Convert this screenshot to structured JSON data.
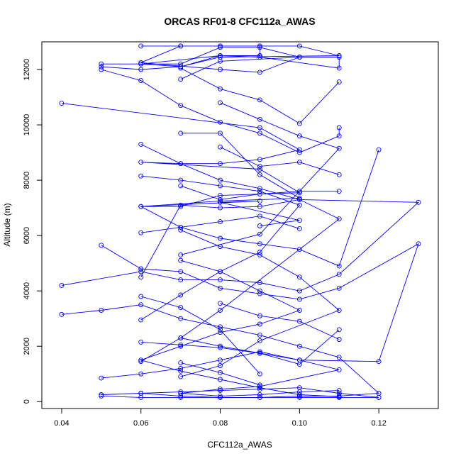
{
  "chart_data": {
    "type": "line",
    "title": "ORCAS RF01-8 CFC112a_AWAS",
    "xlabel": "CFC112a_AWAS",
    "ylabel": "Altitude (m)",
    "xlim": [
      0.035,
      0.135
    ],
    "ylim": [
      -250,
      13000
    ],
    "xticks": [
      0.04,
      0.06,
      0.08,
      0.1,
      0.12
    ],
    "xtick_labels": [
      "0.04",
      "0.06",
      "0.08",
      "0.10",
      "0.12"
    ],
    "yticks": [
      0,
      2000,
      4000,
      6000,
      8000,
      10000,
      12000
    ],
    "ytick_labels": [
      "0",
      "2000",
      "4000",
      "6000",
      "8000",
      "10000",
      "12000"
    ],
    "grid": false,
    "legend": "none",
    "line_color": "#0000ff",
    "series": [
      {
        "x": [
          0.06,
          0.07,
          0.08,
          0.09,
          0.1,
          0.11,
          0.08,
          0.07,
          0.06,
          0.05,
          0.05,
          0.06,
          0.07,
          0.08,
          0.09,
          0.09,
          0.08,
          0.07,
          0.06,
          0.08,
          0.09,
          0.1,
          0.11,
          0.11,
          0.09,
          0.08,
          0.06,
          0.07,
          0.08,
          0.09,
          0.1,
          0.08,
          0.07
        ],
        "y": [
          12850,
          12850,
          12850,
          12850,
          12850,
          12500,
          12450,
          12100,
          12000,
          12100,
          12200,
          12200,
          12100,
          12500,
          12500,
          12850,
          12850,
          12850,
          12250,
          12000,
          11900,
          12450,
          12450,
          12050,
          12450,
          12500,
          12200,
          12200,
          12800,
          12800,
          12450,
          12300,
          11650
        ]
      },
      {
        "x": [
          0.04,
          0.09,
          0.1,
          0.09,
          0.08,
          0.07,
          0.06,
          0.09,
          0.1,
          0.08,
          0.07,
          0.06,
          0.09,
          0.08,
          0.1,
          0.09
        ],
        "y": [
          10780,
          9900,
          9100,
          8750,
          8600,
          8600,
          8650,
          8400,
          7550,
          7450,
          7050,
          7050,
          7250,
          7200,
          6550,
          6350
        ]
      },
      {
        "x": [
          0.07,
          0.08,
          0.09,
          0.1,
          0.08,
          0.06,
          0.07,
          0.08,
          0.09,
          0.1,
          0.11,
          0.12
        ],
        "y": [
          9700,
          9700,
          8200,
          7350,
          7250,
          7050,
          6300,
          5900,
          5700,
          5500,
          4900,
          9100
        ]
      },
      {
        "x": [
          0.05,
          0.06,
          0.07,
          0.08,
          0.09,
          0.1,
          0.11,
          0.13,
          0.12,
          0.1,
          0.09,
          0.08,
          0.07,
          0.06,
          0.05
        ],
        "y": [
          5650,
          4800,
          4700,
          4100,
          3900,
          3700,
          4100,
          5700,
          1450,
          1500,
          1800,
          1500,
          1200,
          1000,
          850
        ]
      },
      {
        "x": [
          0.04,
          0.06,
          0.07,
          0.08,
          0.09,
          0.1,
          0.11,
          0.13,
          0.1,
          0.09,
          0.08,
          0.07,
          0.06
        ],
        "y": [
          4200,
          4700,
          4400,
          4400,
          4300,
          4000,
          4600,
          7200,
          7300,
          7050,
          7000,
          7100,
          4500
        ]
      },
      {
        "x": [
          0.04,
          0.05,
          0.06,
          0.07,
          0.08,
          0.09,
          0.1,
          0.11,
          0.12,
          0.11,
          0.1,
          0.09,
          0.08,
          0.07,
          0.06
        ],
        "y": [
          3150,
          3300,
          3500,
          3000,
          2700,
          2400,
          2000,
          1600,
          300,
          200,
          200,
          150,
          150,
          200,
          300
        ]
      },
      {
        "x": [
          0.05,
          0.06,
          0.07,
          0.08,
          0.09,
          0.1,
          0.11,
          0.12,
          0.12,
          0.11,
          0.1,
          0.09,
          0.08,
          0.07,
          0.06,
          0.05
        ],
        "y": [
          250,
          300,
          350,
          400,
          450,
          500,
          300,
          150,
          150,
          150,
          150,
          150,
          150,
          150,
          150,
          200
        ]
      },
      {
        "x": [
          0.06,
          0.07,
          0.08,
          0.09,
          0.1,
          0.11,
          0.09,
          0.08,
          0.07,
          0.08,
          0.09,
          0.1,
          0.11
        ],
        "y": [
          2150,
          2050,
          1950,
          1750,
          1500,
          1150,
          550,
          450,
          300,
          200,
          250,
          350,
          400
        ]
      },
      {
        "x": [
          0.07,
          0.08,
          0.09,
          0.1,
          0.09,
          0.08,
          0.07,
          0.06,
          0.07,
          0.08,
          0.09,
          0.1,
          0.11
        ],
        "y": [
          5100,
          4700,
          4000,
          3300,
          2800,
          2500,
          2000,
          1500,
          1100,
          800,
          500,
          250,
          180
        ]
      },
      {
        "x": [
          0.06,
          0.07,
          0.08,
          0.09,
          0.1,
          0.11,
          0.08,
          0.07,
          0.06
        ],
        "y": [
          9300,
          8600,
          8000,
          7700,
          7300,
          6600,
          3300,
          2300,
          1450
        ]
      },
      {
        "x": [
          0.06,
          0.07,
          0.08,
          0.09,
          0.1,
          0.09,
          0.08,
          0.07,
          0.06
        ],
        "y": [
          8150,
          8000,
          7800,
          7600,
          7100,
          5400,
          4700,
          3850,
          2950
        ]
      },
      {
        "x": [
          0.07,
          0.08,
          0.09,
          0.1,
          0.11,
          0.09,
          0.08,
          0.07
        ],
        "y": [
          6200,
          5600,
          5300,
          4500,
          3300,
          2200,
          1300,
          900
        ]
      },
      {
        "x": [
          0.05,
          0.06,
          0.07,
          0.08,
          0.09,
          0.1,
          0.11,
          0.11
        ],
        "y": [
          12000,
          11600,
          10700,
          10100,
          9700,
          9000,
          9600,
          9900
        ]
      },
      {
        "x": [
          0.08,
          0.09,
          0.1,
          0.11,
          0.09,
          0.07
        ],
        "y": [
          10800,
          10200,
          9600,
          9150,
          6050,
          5300
        ]
      },
      {
        "x": [
          0.07,
          0.08,
          0.09,
          0.1,
          0.11
        ],
        "y": [
          12050,
          11300,
          10900,
          10050,
          11550
        ]
      },
      {
        "x": [
          0.06,
          0.07,
          0.08,
          0.09,
          0.1
        ],
        "y": [
          6100,
          6300,
          6500,
          6700,
          6250
        ]
      },
      {
        "x": [
          0.08,
          0.09,
          0.1,
          0.11
        ],
        "y": [
          9200,
          8500,
          8650,
          8200
        ]
      },
      {
        "x": [
          0.07,
          0.08,
          0.09,
          0.1,
          0.11
        ],
        "y": [
          7800,
          7300,
          7500,
          7600,
          7600
        ]
      },
      {
        "x": [
          0.06,
          0.07,
          0.08,
          0.09
        ],
        "y": [
          3800,
          3400,
          2600,
          1000
        ]
      },
      {
        "x": [
          0.07,
          0.08,
          0.09,
          0.1,
          0.11
        ],
        "y": [
          2300,
          2000,
          1750,
          1350,
          2600
        ]
      },
      {
        "x": [
          0.07,
          0.08,
          0.09
        ],
        "y": [
          1400,
          1050,
          600
        ]
      },
      {
        "x": [
          0.08,
          0.09,
          0.1,
          0.11
        ],
        "y": [
          3550,
          3100,
          2900,
          2250
        ]
      }
    ]
  }
}
